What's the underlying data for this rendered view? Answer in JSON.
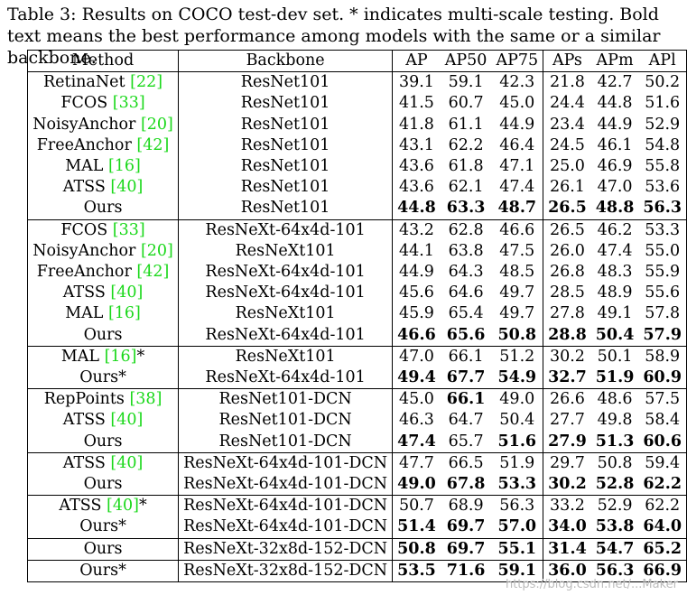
{
  "caption": "Table 3: Results on COCO test-dev set. * indicates multi-scale testing. Bold text means the best performance among models with the same or a similar backbone.",
  "headers": [
    "Method",
    "Backbone",
    "AP",
    "AP50",
    "AP75",
    "APs",
    "APm",
    "APl"
  ],
  "groups": [
    [
      {
        "method": "RetinaNet ",
        "cite": "[22]",
        "suffix": "",
        "backbone": "ResNet101",
        "values": [
          "39.1",
          "59.1",
          "42.3",
          "21.8",
          "42.7",
          "50.2"
        ],
        "bold": [
          false,
          false,
          false,
          false,
          false,
          false
        ]
      },
      {
        "method": "FCOS ",
        "cite": "[33]",
        "suffix": "",
        "backbone": "ResNet101",
        "values": [
          "41.5",
          "60.7",
          "45.0",
          "24.4",
          "44.8",
          "51.6"
        ],
        "bold": [
          false,
          false,
          false,
          false,
          false,
          false
        ]
      },
      {
        "method": "NoisyAnchor ",
        "cite": "[20]",
        "suffix": "",
        "backbone": "ResNet101",
        "values": [
          "41.8",
          "61.1",
          "44.9",
          "23.4",
          "44.9",
          "52.9"
        ],
        "bold": [
          false,
          false,
          false,
          false,
          false,
          false
        ]
      },
      {
        "method": "FreeAnchor ",
        "cite": "[42]",
        "suffix": "",
        "backbone": "ResNet101",
        "values": [
          "43.1",
          "62.2",
          "46.4",
          "24.5",
          "46.1",
          "54.8"
        ],
        "bold": [
          false,
          false,
          false,
          false,
          false,
          false
        ]
      },
      {
        "method": "MAL ",
        "cite": "[16]",
        "suffix": "",
        "backbone": "ResNet101",
        "values": [
          "43.6",
          "61.8",
          "47.1",
          "25.0",
          "46.9",
          "55.8"
        ],
        "bold": [
          false,
          false,
          false,
          false,
          false,
          false
        ]
      },
      {
        "method": "ATSS ",
        "cite": "[40]",
        "suffix": "",
        "backbone": "ResNet101",
        "values": [
          "43.6",
          "62.1",
          "47.4",
          "26.1",
          "47.0",
          "53.6"
        ],
        "bold": [
          false,
          false,
          false,
          false,
          false,
          false
        ]
      },
      {
        "method": "Ours",
        "cite": "",
        "suffix": "",
        "backbone": "ResNet101",
        "values": [
          "44.8",
          "63.3",
          "48.7",
          "26.5",
          "48.8",
          "56.3"
        ],
        "bold": [
          true,
          true,
          true,
          true,
          true,
          true
        ]
      }
    ],
    [
      {
        "method": "FCOS ",
        "cite": "[33]",
        "suffix": "",
        "backbone": "ResNeXt-64x4d-101",
        "values": [
          "43.2",
          "62.8",
          "46.6",
          "26.5",
          "46.2",
          "53.3"
        ],
        "bold": [
          false,
          false,
          false,
          false,
          false,
          false
        ]
      },
      {
        "method": "NoisyAnchor ",
        "cite": "[20]",
        "suffix": "",
        "backbone": "ResNeXt101",
        "values": [
          "44.1",
          "63.8",
          "47.5",
          "26.0",
          "47.4",
          "55.0"
        ],
        "bold": [
          false,
          false,
          false,
          false,
          false,
          false
        ]
      },
      {
        "method": "FreeAnchor ",
        "cite": "[42]",
        "suffix": "",
        "backbone": "ResNeXt-64x4d-101",
        "values": [
          "44.9",
          "64.3",
          "48.5",
          "26.8",
          "48.3",
          "55.9"
        ],
        "bold": [
          false,
          false,
          false,
          false,
          false,
          false
        ]
      },
      {
        "method": "ATSS ",
        "cite": "[40]",
        "suffix": "",
        "backbone": "ResNeXt-64x4d-101",
        "values": [
          "45.6",
          "64.6",
          "49.7",
          "28.5",
          "48.9",
          "55.6"
        ],
        "bold": [
          false,
          false,
          false,
          false,
          false,
          false
        ]
      },
      {
        "method": "MAL ",
        "cite": "[16]",
        "suffix": "",
        "backbone": "ResNeXt101",
        "values": [
          "45.9",
          "65.4",
          "49.7",
          "27.8",
          "49.1",
          "57.8"
        ],
        "bold": [
          false,
          false,
          false,
          false,
          false,
          false
        ]
      },
      {
        "method": "Ours",
        "cite": "",
        "suffix": "",
        "backbone": "ResNeXt-64x4d-101",
        "values": [
          "46.6",
          "65.6",
          "50.8",
          "28.8",
          "50.4",
          "57.9"
        ],
        "bold": [
          true,
          true,
          true,
          true,
          true,
          true
        ]
      }
    ],
    [
      {
        "method": "MAL ",
        "cite": "[16]",
        "suffix": "*",
        "backbone": "ResNeXt101",
        "values": [
          "47.0",
          "66.1",
          "51.2",
          "30.2",
          "50.1",
          "58.9"
        ],
        "bold": [
          false,
          false,
          false,
          false,
          false,
          false
        ]
      },
      {
        "method": "Ours*",
        "cite": "",
        "suffix": "",
        "backbone": "ResNeXt-64x4d-101",
        "values": [
          "49.4",
          "67.7",
          "54.9",
          "32.7",
          "51.9",
          "60.9"
        ],
        "bold": [
          true,
          true,
          true,
          true,
          true,
          true
        ]
      }
    ],
    [
      {
        "method": "RepPoints ",
        "cite": "[38]",
        "suffix": "",
        "backbone": "ResNet101-DCN",
        "values": [
          "45.0",
          "66.1",
          "49.0",
          "26.6",
          "48.6",
          "57.5"
        ],
        "bold": [
          false,
          true,
          false,
          false,
          false,
          false
        ]
      },
      {
        "method": "ATSS ",
        "cite": "[40]",
        "suffix": "",
        "backbone": "ResNet101-DCN",
        "values": [
          "46.3",
          "64.7",
          "50.4",
          "27.7",
          "49.8",
          "58.4"
        ],
        "bold": [
          false,
          false,
          false,
          false,
          false,
          false
        ]
      },
      {
        "method": "Ours",
        "cite": "",
        "suffix": "",
        "backbone": "ResNet101-DCN",
        "values": [
          "47.4",
          "65.7",
          "51.6",
          "27.9",
          "51.3",
          "60.6"
        ],
        "bold": [
          true,
          false,
          true,
          true,
          true,
          true
        ]
      }
    ],
    [
      {
        "method": "ATSS ",
        "cite": "[40]",
        "suffix": "",
        "backbone": "ResNeXt-64x4d-101-DCN",
        "values": [
          "47.7",
          "66.5",
          "51.9",
          "29.7",
          "50.8",
          "59.4"
        ],
        "bold": [
          false,
          false,
          false,
          false,
          false,
          false
        ]
      },
      {
        "method": "Ours",
        "cite": "",
        "suffix": "",
        "backbone": "ResNeXt-64x4d-101-DCN",
        "values": [
          "49.0",
          "67.8",
          "53.3",
          "30.2",
          "52.8",
          "62.2"
        ],
        "bold": [
          true,
          true,
          true,
          true,
          true,
          true
        ]
      }
    ],
    [
      {
        "method": "ATSS ",
        "cite": "[40]",
        "suffix": "*",
        "backbone": "ResNeXt-64x4d-101-DCN",
        "values": [
          "50.7",
          "68.9",
          "56.3",
          "33.2",
          "52.9",
          "62.2"
        ],
        "bold": [
          false,
          false,
          false,
          false,
          false,
          false
        ]
      },
      {
        "method": "Ours*",
        "cite": "",
        "suffix": "",
        "backbone": "ResNeXt-64x4d-101-DCN",
        "values": [
          "51.4",
          "69.7",
          "57.0",
          "34.0",
          "53.8",
          "64.0"
        ],
        "bold": [
          true,
          true,
          true,
          true,
          true,
          true
        ]
      }
    ],
    [
      {
        "method": "Ours",
        "cite": "",
        "suffix": "",
        "backbone": "ResNeXt-32x8d-152-DCN",
        "values": [
          "50.8",
          "69.7",
          "55.1",
          "31.4",
          "54.7",
          "65.2"
        ],
        "bold": [
          true,
          true,
          true,
          true,
          true,
          true
        ]
      }
    ],
    [
      {
        "method": "Ours*",
        "cite": "",
        "suffix": "",
        "backbone": "ResNeXt-32x8d-152-DCN",
        "values": [
          "53.5",
          "71.6",
          "59.1",
          "36.0",
          "56.3",
          "66.9"
        ],
        "bold": [
          true,
          true,
          true,
          true,
          true,
          true
        ]
      }
    ]
  ],
  "watermark": "https://blog.csdn.net/...Maker"
}
